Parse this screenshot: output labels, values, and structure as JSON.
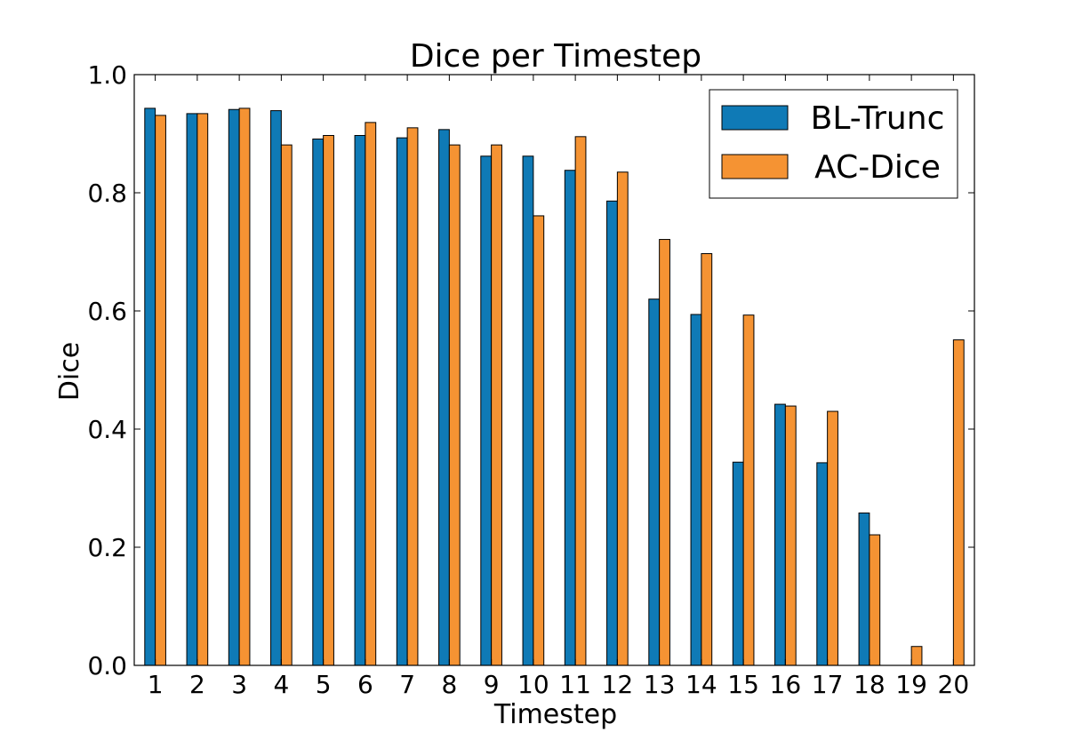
{
  "chart_data": {
    "type": "bar",
    "title": "Dice per Timestep",
    "xlabel": "Timestep",
    "ylabel": "Dice",
    "ylim": [
      0.0,
      1.0
    ],
    "yticks": [
      "0.0",
      "0.2",
      "0.4",
      "0.6",
      "0.8",
      "1.0"
    ],
    "grid": false,
    "legend_position": "top-right",
    "categories": [
      "1",
      "2",
      "3",
      "4",
      "5",
      "6",
      "7",
      "8",
      "9",
      "10",
      "11",
      "12",
      "13",
      "14",
      "15",
      "16",
      "17",
      "18",
      "19",
      "20"
    ],
    "series": [
      {
        "name": "BL-Trunc",
        "color": "#0f7ab6",
        "values": [
          0.943,
          0.934,
          0.941,
          0.939,
          0.891,
          0.897,
          0.893,
          0.907,
          0.862,
          0.862,
          0.838,
          0.786,
          0.62,
          0.594,
          0.344,
          0.442,
          0.343,
          0.258,
          0.0,
          0.0
        ]
      },
      {
        "name": "AC-Dice",
        "color": "#f59333",
        "values": [
          0.931,
          0.934,
          0.943,
          0.881,
          0.897,
          0.919,
          0.91,
          0.881,
          0.881,
          0.761,
          0.895,
          0.835,
          0.721,
          0.697,
          0.593,
          0.439,
          0.43,
          0.221,
          0.032,
          0.551
        ]
      }
    ]
  }
}
